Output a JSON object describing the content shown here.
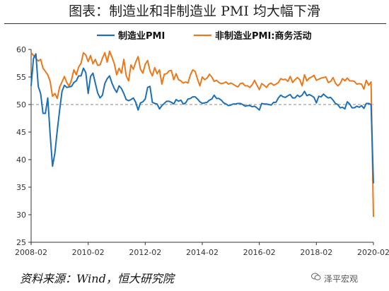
{
  "title": "图表：制造业和非制造业 PMI 均大幅下滑",
  "source": "资料来源：Wind，恒大研究院",
  "watermark": {
    "text": "泽平宏观",
    "icon": "wechat-icon"
  },
  "colors": {
    "manufacturing": "#1f6fb4",
    "non_manufacturing": "#e8791d",
    "reference": "#888888",
    "axis": "#333333"
  },
  "chart_data": {
    "type": "line",
    "title": "图表：制造业和非制造业 PMI 均大幅下滑",
    "xlabel": "",
    "ylabel": "",
    "ylim": [
      25,
      60
    ],
    "yticks": [
      25,
      30,
      35,
      40,
      45,
      50,
      55,
      60
    ],
    "xticks": [
      "2008-02",
      "2010-02",
      "2012-02",
      "2014-02",
      "2016-02",
      "2018-02",
      "2020-02"
    ],
    "xrange": [
      "2008-02",
      "2020-02"
    ],
    "reference_line": 50,
    "legend": "top-center",
    "grid": false,
    "series": [
      {
        "name": "制造业PMI",
        "color": "#1f6fb4",
        "points": [
          [
            "2008-02",
            53.4
          ],
          [
            "2008-03",
            58.4
          ],
          [
            "2008-04",
            59.2
          ],
          [
            "2008-05",
            53.3
          ],
          [
            "2008-06",
            52.0
          ],
          [
            "2008-07",
            48.4
          ],
          [
            "2008-08",
            48.4
          ],
          [
            "2008-09",
            51.2
          ],
          [
            "2008-10",
            44.6
          ],
          [
            "2008-11",
            38.8
          ],
          [
            "2008-12",
            41.2
          ],
          [
            "2009-01",
            45.3
          ],
          [
            "2009-02",
            49.0
          ],
          [
            "2009-03",
            52.4
          ],
          [
            "2009-04",
            53.5
          ],
          [
            "2009-05",
            53.1
          ],
          [
            "2009-06",
            53.2
          ],
          [
            "2009-07",
            53.3
          ],
          [
            "2009-08",
            54.0
          ],
          [
            "2009-09",
            54.3
          ],
          [
            "2009-10",
            55.2
          ],
          [
            "2009-11",
            55.2
          ],
          [
            "2009-12",
            56.6
          ],
          [
            "2010-01",
            55.8
          ],
          [
            "2010-02",
            52.0
          ],
          [
            "2010-03",
            55.1
          ],
          [
            "2010-04",
            55.7
          ],
          [
            "2010-05",
            53.9
          ],
          [
            "2010-06",
            52.1
          ],
          [
            "2010-07",
            51.2
          ],
          [
            "2010-08",
            51.7
          ],
          [
            "2010-09",
            53.8
          ],
          [
            "2010-10",
            54.7
          ],
          [
            "2010-11",
            55.2
          ],
          [
            "2010-12",
            53.9
          ],
          [
            "2011-01",
            52.9
          ],
          [
            "2011-02",
            52.2
          ],
          [
            "2011-03",
            53.4
          ],
          [
            "2011-04",
            52.9
          ],
          [
            "2011-05",
            52.0
          ],
          [
            "2011-06",
            50.9
          ],
          [
            "2011-07",
            50.7
          ],
          [
            "2011-08",
            50.9
          ],
          [
            "2011-09",
            51.2
          ],
          [
            "2011-10",
            50.4
          ],
          [
            "2011-11",
            49.0
          ],
          [
            "2011-12",
            50.3
          ],
          [
            "2012-01",
            50.5
          ],
          [
            "2012-02",
            51.0
          ],
          [
            "2012-03",
            53.1
          ],
          [
            "2012-04",
            53.3
          ],
          [
            "2012-05",
            50.4
          ],
          [
            "2012-06",
            50.2
          ],
          [
            "2012-07",
            50.1
          ],
          [
            "2012-08",
            49.2
          ],
          [
            "2012-09",
            49.8
          ],
          [
            "2012-10",
            50.2
          ],
          [
            "2012-11",
            50.6
          ],
          [
            "2012-12",
            50.6
          ],
          [
            "2013-01",
            50.4
          ],
          [
            "2013-02",
            50.1
          ],
          [
            "2013-03",
            50.9
          ],
          [
            "2013-04",
            50.6
          ],
          [
            "2013-05",
            50.8
          ],
          [
            "2013-06",
            50.1
          ],
          [
            "2013-07",
            50.3
          ],
          [
            "2013-08",
            51.0
          ],
          [
            "2013-09",
            51.1
          ],
          [
            "2013-10",
            51.4
          ],
          [
            "2013-11",
            51.4
          ],
          [
            "2013-12",
            51.0
          ],
          [
            "2014-01",
            50.5
          ],
          [
            "2014-02",
            50.2
          ],
          [
            "2014-03",
            50.3
          ],
          [
            "2014-04",
            50.4
          ],
          [
            "2014-05",
            50.8
          ],
          [
            "2014-06",
            51.0
          ],
          [
            "2014-07",
            51.7
          ],
          [
            "2014-08",
            51.1
          ],
          [
            "2014-09",
            51.1
          ],
          [
            "2014-10",
            50.8
          ],
          [
            "2014-11",
            50.3
          ],
          [
            "2014-12",
            50.1
          ],
          [
            "2015-01",
            49.8
          ],
          [
            "2015-02",
            49.9
          ],
          [
            "2015-03",
            50.1
          ],
          [
            "2015-04",
            50.1
          ],
          [
            "2015-05",
            50.2
          ],
          [
            "2015-06",
            50.2
          ],
          [
            "2015-07",
            50.0
          ],
          [
            "2015-08",
            49.7
          ],
          [
            "2015-09",
            49.8
          ],
          [
            "2015-10",
            49.8
          ],
          [
            "2015-11",
            49.6
          ],
          [
            "2015-12",
            49.7
          ],
          [
            "2016-01",
            49.4
          ],
          [
            "2016-02",
            49.0
          ],
          [
            "2016-03",
            50.2
          ],
          [
            "2016-04",
            50.1
          ],
          [
            "2016-05",
            50.1
          ],
          [
            "2016-06",
            50.0
          ],
          [
            "2016-07",
            49.9
          ],
          [
            "2016-08",
            50.4
          ],
          [
            "2016-09",
            50.4
          ],
          [
            "2016-10",
            51.2
          ],
          [
            "2016-11",
            51.7
          ],
          [
            "2016-12",
            51.4
          ],
          [
            "2017-01",
            51.3
          ],
          [
            "2017-02",
            51.6
          ],
          [
            "2017-03",
            51.8
          ],
          [
            "2017-04",
            51.2
          ],
          [
            "2017-05",
            51.2
          ],
          [
            "2017-06",
            51.7
          ],
          [
            "2017-07",
            51.4
          ],
          [
            "2017-08",
            51.7
          ],
          [
            "2017-09",
            52.4
          ],
          [
            "2017-10",
            51.6
          ],
          [
            "2017-11",
            51.8
          ],
          [
            "2017-12",
            51.6
          ],
          [
            "2018-01",
            51.3
          ],
          [
            "2018-02",
            50.3
          ],
          [
            "2018-03",
            51.5
          ],
          [
            "2018-04",
            51.4
          ],
          [
            "2018-05",
            51.9
          ],
          [
            "2018-06",
            51.5
          ],
          [
            "2018-07",
            51.2
          ],
          [
            "2018-08",
            51.3
          ],
          [
            "2018-09",
            50.8
          ],
          [
            "2018-10",
            50.2
          ],
          [
            "2018-11",
            50.0
          ],
          [
            "2018-12",
            49.4
          ],
          [
            "2019-01",
            49.5
          ],
          [
            "2019-02",
            49.2
          ],
          [
            "2019-03",
            50.5
          ],
          [
            "2019-04",
            50.1
          ],
          [
            "2019-05",
            49.4
          ],
          [
            "2019-06",
            49.4
          ],
          [
            "2019-07",
            49.7
          ],
          [
            "2019-08",
            49.5
          ],
          [
            "2019-09",
            49.8
          ],
          [
            "2019-10",
            49.3
          ],
          [
            "2019-11",
            50.2
          ],
          [
            "2019-12",
            50.2
          ],
          [
            "2020-01",
            50.0
          ],
          [
            "2020-02",
            35.7
          ]
        ]
      },
      {
        "name": "非制造业PMI:商务活动",
        "color": "#e8791d",
        "points": [
          [
            "2008-02",
            59.4
          ],
          [
            "2008-03",
            58.9
          ],
          [
            "2008-04",
            58.4
          ],
          [
            "2008-05",
            57.9
          ],
          [
            "2008-06",
            58.2
          ],
          [
            "2008-07",
            56.6
          ],
          [
            "2008-08",
            56.0
          ],
          [
            "2008-09",
            55.4
          ],
          [
            "2008-10",
            54.2
          ],
          [
            "2008-11",
            51.5
          ],
          [
            "2008-12",
            52.0
          ],
          [
            "2009-01",
            51.1
          ],
          [
            "2009-02",
            53.2
          ],
          [
            "2009-03",
            54.1
          ],
          [
            "2009-04",
            55.1
          ],
          [
            "2009-05",
            54.0
          ],
          [
            "2009-06",
            53.3
          ],
          [
            "2009-07",
            54.5
          ],
          [
            "2009-08",
            56.3
          ],
          [
            "2009-09",
            55.4
          ],
          [
            "2009-10",
            56.8
          ],
          [
            "2009-11",
            57.5
          ],
          [
            "2009-12",
            59.4
          ],
          [
            "2010-01",
            59.0
          ],
          [
            "2010-02",
            57.8
          ],
          [
            "2010-03",
            58.9
          ],
          [
            "2010-04",
            57.4
          ],
          [
            "2010-05",
            58.2
          ],
          [
            "2010-06",
            57.1
          ],
          [
            "2010-07",
            57.2
          ],
          [
            "2010-08",
            58.4
          ],
          [
            "2010-09",
            59.4
          ],
          [
            "2010-10",
            57.7
          ],
          [
            "2010-11",
            59.7
          ],
          [
            "2010-12",
            58.6
          ],
          [
            "2011-01",
            57.4
          ],
          [
            "2011-02",
            55.4
          ],
          [
            "2011-03",
            56.6
          ],
          [
            "2011-04",
            55.7
          ],
          [
            "2011-05",
            58.2
          ],
          [
            "2011-06",
            55.2
          ],
          [
            "2011-07",
            54.3
          ],
          [
            "2011-08",
            57.2
          ],
          [
            "2011-09",
            56.4
          ],
          [
            "2011-10",
            57.7
          ],
          [
            "2011-11",
            58.7
          ],
          [
            "2011-12",
            56.4
          ],
          [
            "2012-01",
            55.7
          ],
          [
            "2012-02",
            57.3
          ],
          [
            "2012-03",
            58.0
          ],
          [
            "2012-04",
            56.1
          ],
          [
            "2012-05",
            55.2
          ],
          [
            "2012-06",
            56.7
          ],
          [
            "2012-07",
            55.6
          ],
          [
            "2012-08",
            56.3
          ],
          [
            "2012-09",
            53.7
          ],
          [
            "2012-10",
            55.5
          ],
          [
            "2012-11",
            55.6
          ],
          [
            "2012-12",
            56.1
          ],
          [
            "2013-01",
            56.2
          ],
          [
            "2013-02",
            54.5
          ],
          [
            "2013-03",
            55.6
          ],
          [
            "2013-04",
            54.5
          ],
          [
            "2013-05",
            54.3
          ],
          [
            "2013-06",
            53.9
          ],
          [
            "2013-07",
            54.1
          ],
          [
            "2013-08",
            53.9
          ],
          [
            "2013-09",
            55.4
          ],
          [
            "2013-10",
            56.3
          ],
          [
            "2013-11",
            56.0
          ],
          [
            "2013-12",
            54.6
          ],
          [
            "2014-01",
            53.4
          ],
          [
            "2014-02",
            55.0
          ],
          [
            "2014-03",
            54.5
          ],
          [
            "2014-04",
            54.8
          ],
          [
            "2014-05",
            55.5
          ],
          [
            "2014-06",
            55.0
          ],
          [
            "2014-07",
            54.2
          ],
          [
            "2014-08",
            54.4
          ],
          [
            "2014-09",
            54.0
          ],
          [
            "2014-10",
            53.8
          ],
          [
            "2014-11",
            53.9
          ],
          [
            "2014-12",
            54.1
          ],
          [
            "2015-01",
            53.7
          ],
          [
            "2015-02",
            53.9
          ],
          [
            "2015-03",
            53.7
          ],
          [
            "2015-04",
            53.4
          ],
          [
            "2015-05",
            53.2
          ],
          [
            "2015-06",
            53.8
          ],
          [
            "2015-07",
            53.9
          ],
          [
            "2015-08",
            53.4
          ],
          [
            "2015-09",
            53.4
          ],
          [
            "2015-10",
            53.1
          ],
          [
            "2015-11",
            53.6
          ],
          [
            "2015-12",
            54.4
          ],
          [
            "2016-01",
            53.5
          ],
          [
            "2016-02",
            52.7
          ],
          [
            "2016-03",
            53.8
          ],
          [
            "2016-04",
            53.5
          ],
          [
            "2016-05",
            53.1
          ],
          [
            "2016-06",
            53.7
          ],
          [
            "2016-07",
            53.9
          ],
          [
            "2016-08",
            53.5
          ],
          [
            "2016-09",
            53.7
          ],
          [
            "2016-10",
            54.0
          ],
          [
            "2016-11",
            54.7
          ],
          [
            "2016-12",
            54.5
          ],
          [
            "2017-01",
            54.6
          ],
          [
            "2017-02",
            54.2
          ],
          [
            "2017-03",
            55.1
          ],
          [
            "2017-04",
            54.0
          ],
          [
            "2017-05",
            54.5
          ],
          [
            "2017-06",
            54.9
          ],
          [
            "2017-07",
            54.5
          ],
          [
            "2017-08",
            53.4
          ],
          [
            "2017-09",
            55.4
          ],
          [
            "2017-10",
            54.3
          ],
          [
            "2017-11",
            54.8
          ],
          [
            "2017-12",
            55.0
          ],
          [
            "2018-01",
            55.3
          ],
          [
            "2018-02",
            54.4
          ],
          [
            "2018-03",
            54.6
          ],
          [
            "2018-04",
            54.8
          ],
          [
            "2018-05",
            54.9
          ],
          [
            "2018-06",
            55.0
          ],
          [
            "2018-07",
            54.0
          ],
          [
            "2018-08",
            54.2
          ],
          [
            "2018-09",
            54.9
          ],
          [
            "2018-10",
            53.9
          ],
          [
            "2018-11",
            53.4
          ],
          [
            "2018-12",
            53.8
          ],
          [
            "2019-01",
            54.7
          ],
          [
            "2019-02",
            54.3
          ],
          [
            "2019-03",
            54.8
          ],
          [
            "2019-04",
            54.3
          ],
          [
            "2019-05",
            54.3
          ],
          [
            "2019-06",
            54.2
          ],
          [
            "2019-07",
            53.7
          ],
          [
            "2019-08",
            53.8
          ],
          [
            "2019-09",
            53.7
          ],
          [
            "2019-10",
            52.8
          ],
          [
            "2019-11",
            54.4
          ],
          [
            "2019-12",
            53.5
          ],
          [
            "2020-01",
            54.1
          ],
          [
            "2020-02",
            29.6
          ]
        ]
      }
    ]
  }
}
